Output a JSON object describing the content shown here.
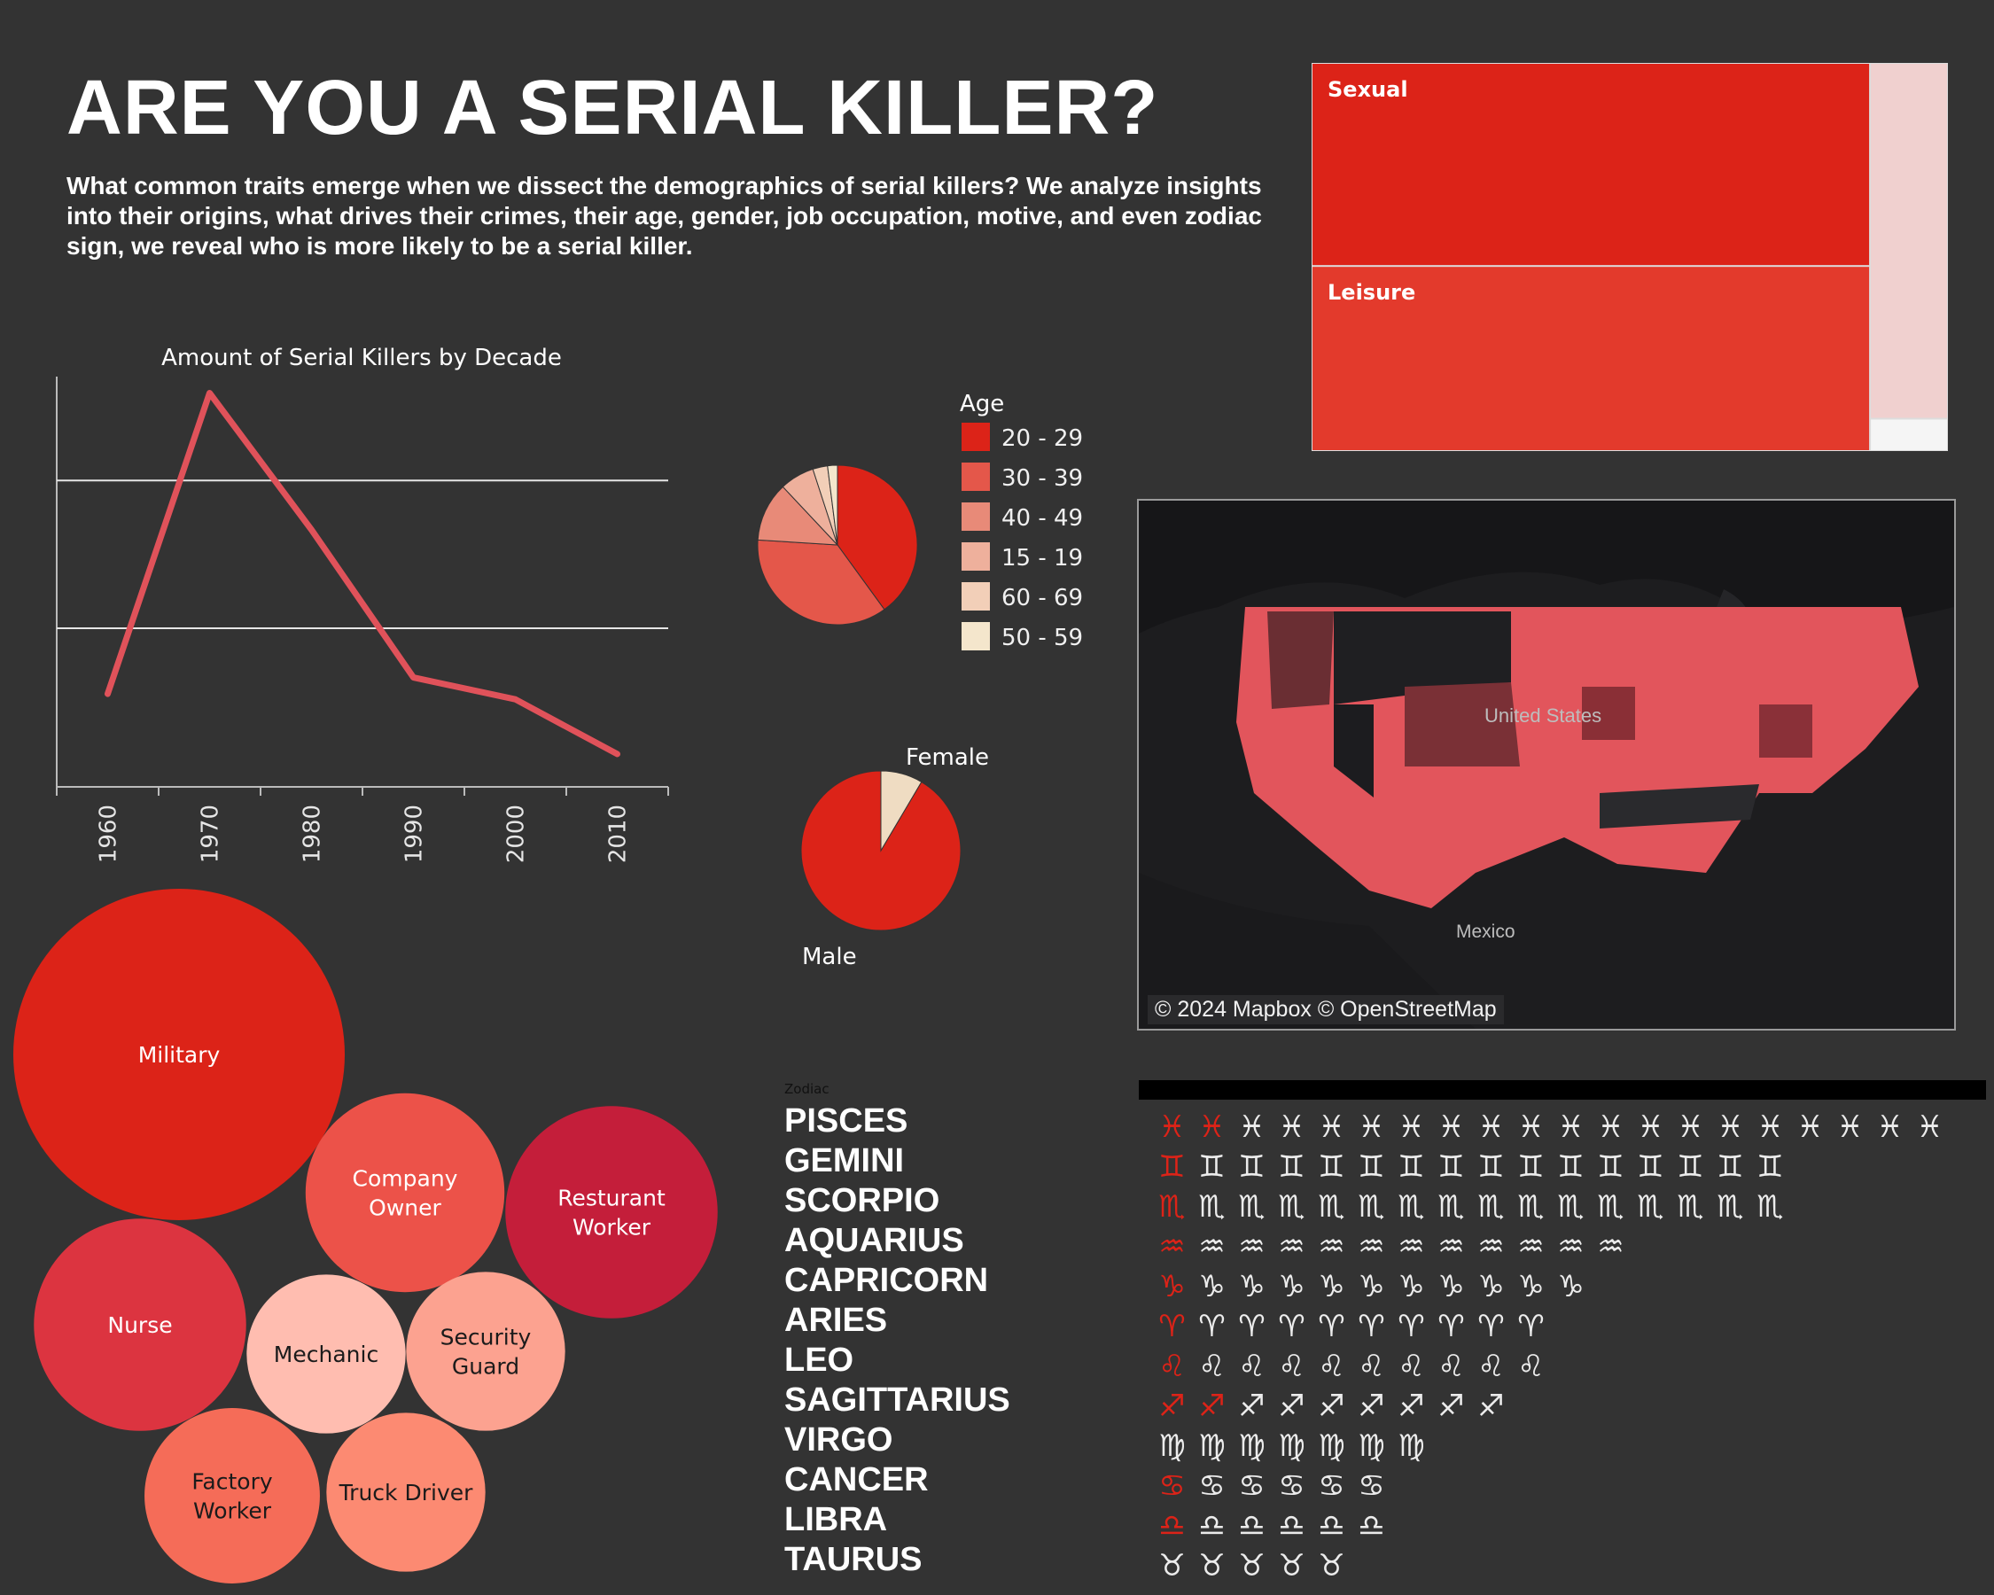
{
  "header": {
    "title": "ARE YOU A SERIAL KILLER?",
    "subtitle": "What common traits emerge when we dissect the demographics of serial killers? We analyze insights into their origins, what drives their crimes, their age, gender, job occupation, motive, and even zodiac sign, we reveal who is more likely to be a serial killer."
  },
  "colors": {
    "background": "#333333",
    "primary_red": "#dc2318",
    "line": "#e0525a"
  },
  "chart_data": [
    {
      "id": "decade-line",
      "type": "line",
      "title": "Amount of Serial Killers by Decade",
      "x": [
        "1960",
        "1970",
        "1980",
        "1990",
        "2000",
        "2010"
      ],
      "values": [
        17,
        72,
        47,
        20,
        16,
        6
      ],
      "ylim": [
        0,
        75
      ],
      "gridlines": [
        29,
        56
      ],
      "color": "#e0525a"
    },
    {
      "id": "age-pie",
      "type": "pie",
      "legend_title": "Age",
      "categories": [
        "20 - 29",
        "30 - 39",
        "40 - 49",
        "15 - 19",
        "60 - 69",
        "50 - 59"
      ],
      "values": [
        40,
        36,
        12,
        7,
        3,
        2
      ],
      "colors": [
        "#dc2318",
        "#e4574a",
        "#e88a78",
        "#eeb09c",
        "#f2cfb8",
        "#f4e6cc"
      ]
    },
    {
      "id": "gender-pie",
      "type": "pie",
      "categories": [
        "Female",
        "Male"
      ],
      "values": [
        8.5,
        91.5
      ],
      "colors": [
        "#efdcc2",
        "#dc2318"
      ]
    },
    {
      "id": "motive-treemap",
      "type": "treemap",
      "categories": [
        "Sexual",
        "Leisure",
        "",
        ""
      ],
      "values": [
        45,
        41,
        11,
        1
      ],
      "colors": [
        "#dc2318",
        "#e33a2c",
        "#f0d0cf",
        "#f5f5f5"
      ]
    },
    {
      "id": "occupation-bubbles",
      "type": "bubble",
      "categories": [
        "Military",
        "Company Owner",
        "Resturant Worker",
        "Nurse",
        "Mechanic",
        "Security Guard",
        "Factory Worker",
        "Truck Driver"
      ],
      "values": [
        100,
        36,
        41,
        41,
        23,
        23,
        28,
        23
      ],
      "colors": [
        "#dc2318",
        "#ec5249",
        "#c41e3a",
        "#dc3440",
        "#ffbdb0",
        "#fca290",
        "#f56c58",
        "#fc8a72"
      ]
    },
    {
      "id": "zodiac-counts",
      "type": "pictograph",
      "title": "Zodiac",
      "categories": [
        "PISCES",
        "GEMINI",
        "SCORPIO",
        "AQUARIUS",
        "CAPRICORN",
        "ARIES",
        "LEO",
        "SAGITTARIUS",
        "VIRGO",
        "CANCER",
        "LIBRA",
        "TAURUS"
      ],
      "values": [
        20,
        16,
        16,
        12,
        11,
        10,
        10,
        9,
        7,
        6,
        6,
        5
      ],
      "highlighted": [
        2,
        1,
        1,
        1,
        1,
        1,
        1,
        2,
        0,
        1,
        1,
        0
      ],
      "symbols": [
        "♓",
        "♊",
        "♏",
        "♒",
        "♑",
        "♈",
        "♌",
        "♐",
        "♍",
        "♋",
        "♎",
        "♉"
      ]
    }
  ],
  "map": {
    "labels": [
      "United States",
      "Mexico"
    ],
    "credit": "© 2024 Mapbox © OpenStreetMap"
  }
}
